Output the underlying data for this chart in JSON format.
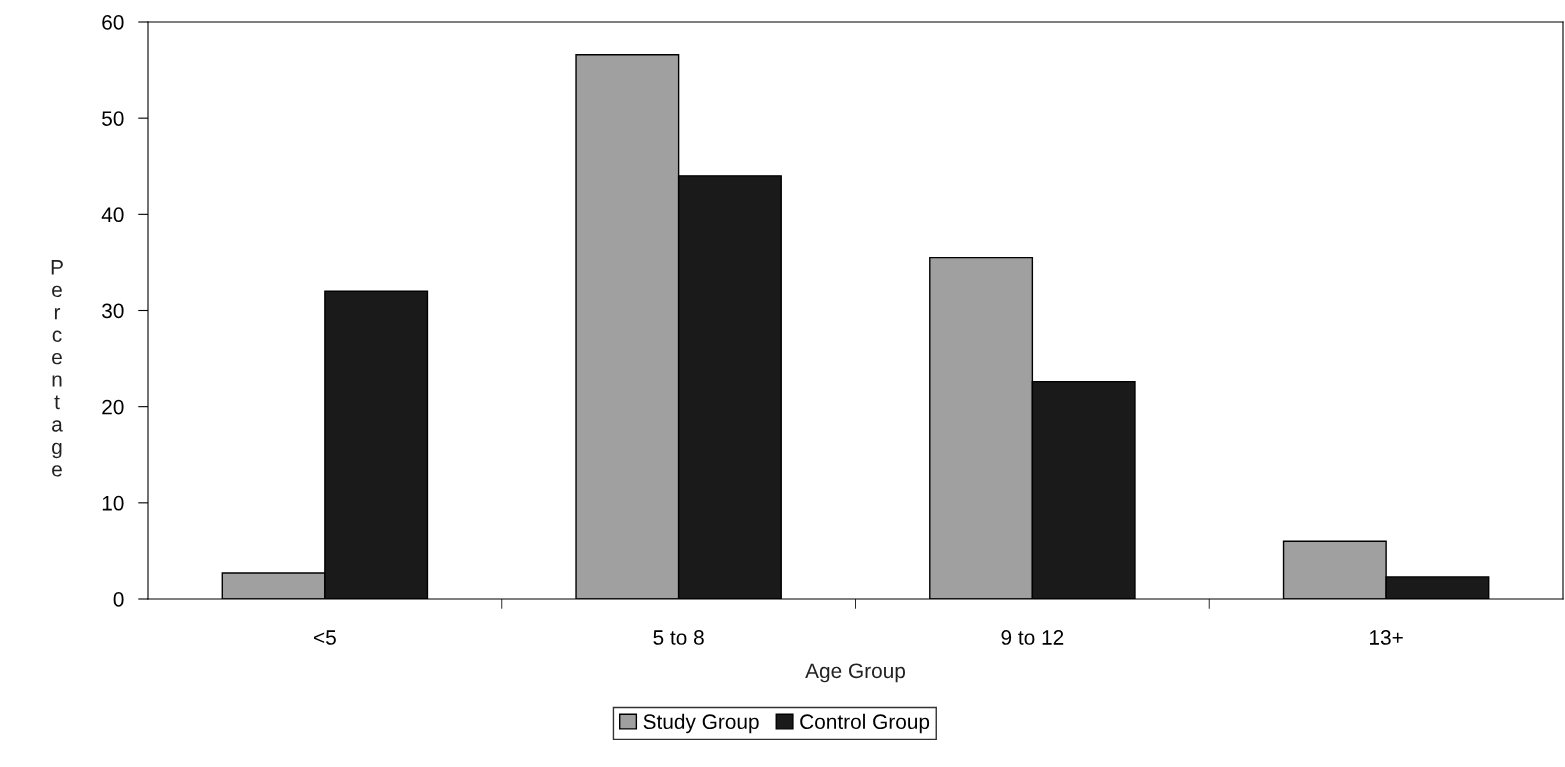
{
  "chart_data": {
    "type": "bar",
    "xlabel": "Age Group",
    "ylabel": "Percentage",
    "categories": [
      "<5",
      "5 to 8",
      "9 to 12",
      "13+"
    ],
    "series": [
      {
        "name": "Study Group",
        "color": "#a0a0a0",
        "values": [
          2.7,
          56.6,
          35.5,
          6.0
        ]
      },
      {
        "name": "Control Group",
        "color": "#1a1a1a",
        "values": [
          32.0,
          44.0,
          22.6,
          2.3
        ]
      }
    ],
    "ylim": [
      0,
      60
    ],
    "yticks": [
      0,
      10,
      20,
      30,
      40,
      50,
      60
    ],
    "grid": false,
    "legend": "bottom"
  }
}
